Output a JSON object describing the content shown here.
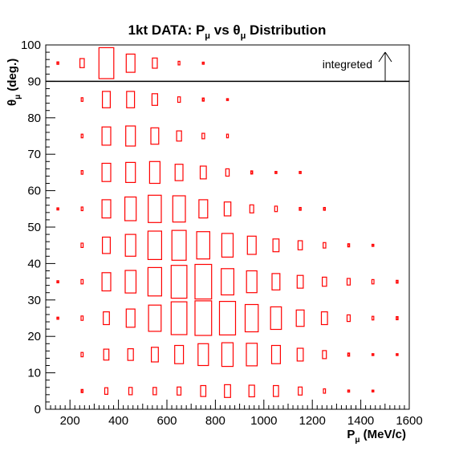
{
  "chart_data": {
    "type": "box",
    "title": "1kt DATA: P",
    "title_mu": "μ",
    "title_vs": " vs θ",
    "title_mu2": "μ",
    "title_end": " Distribution",
    "xlabel": "P",
    "xlabel_sub": "μ",
    "xlabel_unit": " (MeV/c)",
    "ylabel": "θ",
    "ylabel_sub": "μ",
    "ylabel_unit": " (deg.)",
    "xlim": [
      100,
      1600
    ],
    "ylim": [
      0,
      100
    ],
    "xticks": [
      200,
      400,
      600,
      800,
      1000,
      1200,
      1400,
      1600
    ],
    "yticks": [
      0,
      10,
      20,
      30,
      40,
      50,
      60,
      70,
      80,
      90,
      100
    ],
    "integrated_row_y": 95,
    "integrated_label": "integreted",
    "divider_y": 90,
    "box_color": "#ff0000",
    "bin_width": 100,
    "bin_height": 10,
    "x_centers": [
      150,
      250,
      350,
      450,
      550,
      650,
      750,
      850,
      950,
      1050,
      1150,
      1250,
      1350,
      1450,
      1550
    ],
    "rows": [
      {
        "y": 95,
        "sizes": [
          0.06,
          0.25,
          0.85,
          0.5,
          0.28,
          0.1,
          0.05,
          0,
          0,
          0,
          0,
          0,
          0,
          0,
          0
        ]
      },
      {
        "y": 85,
        "sizes": [
          0,
          0.1,
          0.45,
          0.45,
          0.32,
          0.15,
          0.08,
          0.04,
          0,
          0,
          0,
          0,
          0,
          0,
          0
        ]
      },
      {
        "y": 75,
        "sizes": [
          0,
          0.1,
          0.5,
          0.55,
          0.45,
          0.28,
          0.15,
          0.1,
          0,
          0,
          0,
          0,
          0,
          0,
          0
        ]
      },
      {
        "y": 65,
        "sizes": [
          0,
          0.1,
          0.5,
          0.55,
          0.6,
          0.45,
          0.35,
          0.2,
          0.08,
          0.05,
          0.05,
          0,
          0,
          0,
          0
        ]
      },
      {
        "y": 55,
        "sizes": [
          0.05,
          0.1,
          0.5,
          0.65,
          0.75,
          0.72,
          0.5,
          0.38,
          0.22,
          0.15,
          0.07,
          0.07,
          0,
          0,
          0
        ]
      },
      {
        "y": 45,
        "sizes": [
          0,
          0.12,
          0.45,
          0.6,
          0.78,
          0.82,
          0.75,
          0.65,
          0.5,
          0.35,
          0.25,
          0.15,
          0.08,
          0.05,
          0
        ]
      },
      {
        "y": 35,
        "sizes": [
          0.05,
          0.12,
          0.5,
          0.62,
          0.78,
          0.9,
          0.95,
          0.72,
          0.6,
          0.45,
          0.35,
          0.25,
          0.18,
          0.12,
          0.07
        ]
      },
      {
        "y": 25,
        "sizes": [
          0.05,
          0.12,
          0.35,
          0.5,
          0.72,
          0.9,
          0.95,
          0.92,
          0.75,
          0.62,
          0.45,
          0.35,
          0.18,
          0.1,
          0.08
        ]
      },
      {
        "y": 15,
        "sizes": [
          0,
          0.12,
          0.3,
          0.32,
          0.4,
          0.5,
          0.6,
          0.65,
          0.62,
          0.5,
          0.35,
          0.22,
          0.08,
          0.04,
          0.04
        ]
      },
      {
        "y": 5,
        "sizes": [
          0,
          0.08,
          0.18,
          0.2,
          0.2,
          0.22,
          0.3,
          0.35,
          0.32,
          0.3,
          0.22,
          0.12,
          0.05,
          0.04,
          0
        ]
      }
    ]
  }
}
